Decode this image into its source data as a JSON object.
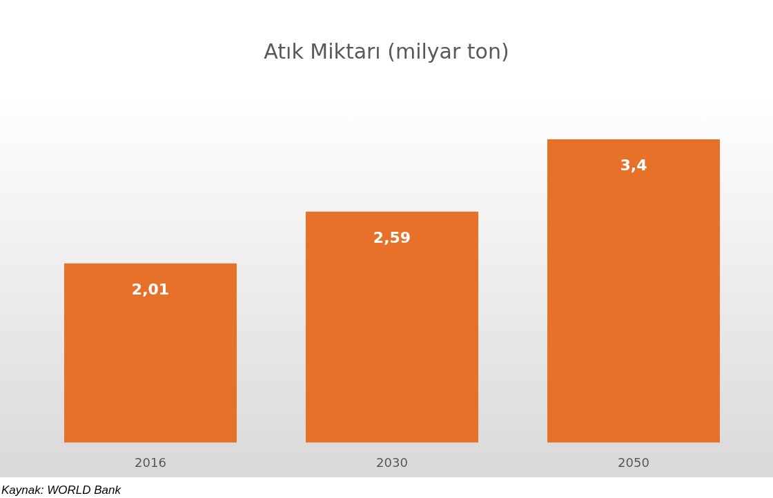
{
  "chart_data": {
    "type": "bar",
    "title": "Atık Miktarı (milyar ton)",
    "categories": [
      "2016",
      "2030",
      "2050"
    ],
    "values": [
      2.01,
      2.59,
      3.4
    ],
    "value_labels": [
      "2,01",
      "2,59",
      "3,4"
    ],
    "color": "#e8712a",
    "annotations": [
      "Kaynak: WORLD Bank"
    ]
  }
}
